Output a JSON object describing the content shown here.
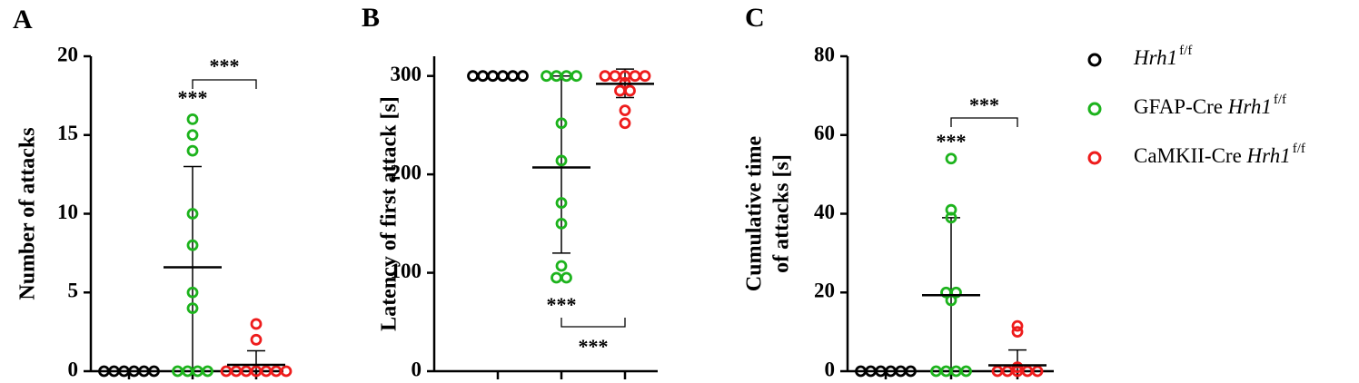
{
  "chart_data": [
    {
      "type": "scatter",
      "panel": "A",
      "ylabel": [
        "Number of attacks"
      ],
      "categories": [
        null,
        null,
        null
      ],
      "ylim": [
        0,
        20
      ],
      "yticks": [
        0,
        5,
        10,
        15,
        20
      ],
      "series": [
        {
          "color": "#000000",
          "values": [
            0,
            0,
            0,
            0,
            0,
            0
          ]
        },
        {
          "color": "#1db31d",
          "values": [
            16,
            15,
            14,
            10,
            8,
            5,
            4,
            0,
            0,
            0,
            0
          ],
          "mean": 6.6,
          "whisker": [
            0,
            13
          ]
        },
        {
          "color": "#ee1c1c",
          "values": [
            3,
            2,
            0,
            0,
            0,
            0,
            0,
            0,
            0
          ],
          "mean": 0.4,
          "whisker": [
            0,
            1.3
          ]
        }
      ],
      "annotations": [
        "***",
        "***"
      ]
    },
    {
      "type": "scatter",
      "panel": "B",
      "ylabel": [
        "Latency of first attack [s]"
      ],
      "categories": [
        null,
        null,
        null
      ],
      "ylim": [
        0,
        320
      ],
      "yticks": [
        0,
        100,
        200,
        300
      ],
      "series": [
        {
          "color": "#000000",
          "values": [
            300,
            300,
            300,
            300,
            300,
            300
          ]
        },
        {
          "color": "#1db31d",
          "values": [
            300,
            300,
            300,
            300,
            252,
            214,
            171,
            150,
            107,
            95,
            95
          ],
          "mean": 207,
          "whisker": [
            120,
            300
          ]
        },
        {
          "color": "#ee1c1c",
          "values": [
            300,
            300,
            300,
            300,
            300,
            293,
            285,
            285,
            265,
            252
          ],
          "mean": 292,
          "whisker": [
            278,
            307
          ]
        }
      ],
      "annotations": [
        "***",
        "***"
      ]
    },
    {
      "type": "scatter",
      "panel": "C",
      "ylabel": [
        "Cumulative time",
        "of attacks [s]"
      ],
      "categories": [
        null,
        null,
        null
      ],
      "ylim": [
        0,
        80
      ],
      "yticks": [
        0,
        20,
        40,
        60,
        80
      ],
      "series": [
        {
          "color": "#000000",
          "values": [
            0,
            0,
            0,
            0,
            0,
            0
          ]
        },
        {
          "color": "#1db31d",
          "values": [
            54,
            41,
            39,
            20,
            20,
            18,
            0,
            0,
            0,
            0
          ],
          "mean": 19.3,
          "whisker": [
            0,
            39
          ]
        },
        {
          "color": "#ee1c1c",
          "values": [
            11.5,
            10,
            1,
            0,
            0,
            0,
            0,
            0
          ],
          "mean": 1.5,
          "whisker": [
            0,
            5.4
          ]
        }
      ],
      "annotations": [
        "***",
        "***"
      ]
    }
  ],
  "legend": {
    "entries": [
      {
        "color": "#000000",
        "gene": "Hrh1",
        "sup": "f/f"
      },
      {
        "color": "#1db31d",
        "prefix": "GFAP-Cre",
        "gene": "Hrh1",
        "sup": "f/f"
      },
      {
        "color": "#ee1c1c",
        "prefix": "CaMKII-Cre",
        "gene": "Hrh1",
        "sup": "f/f"
      }
    ]
  }
}
